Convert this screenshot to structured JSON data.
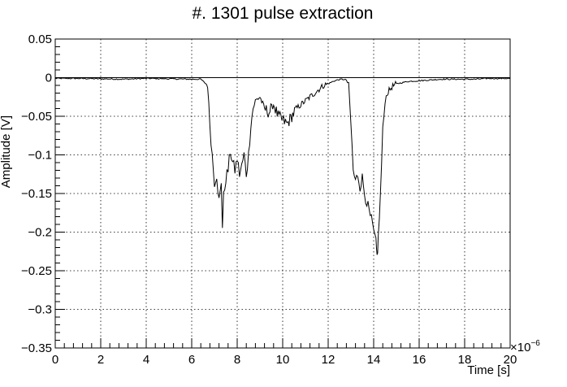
{
  "chart_data": {
    "type": "line",
    "title": "#. 1301 pulse extraction",
    "xlabel": "Time [s]",
    "ylabel": "Amplitude [V]",
    "x_exponent_label": "×10",
    "x_exponent_power": "−6",
    "xlim": [
      0,
      20
    ],
    "ylim": [
      -0.35,
      0.05
    ],
    "x_ticks": [
      0,
      2,
      4,
      6,
      8,
      10,
      12,
      14,
      16,
      18,
      20
    ],
    "x_tick_labels": [
      "0",
      "2",
      "4",
      "6",
      "8",
      "10",
      "12",
      "14",
      "16",
      "18",
      "20"
    ],
    "y_ticks": [
      0.05,
      0,
      -0.05,
      -0.1,
      -0.15,
      -0.2,
      -0.25,
      -0.3,
      -0.35
    ],
    "y_tick_labels": [
      "0.05",
      "0",
      "−0.05",
      "−0.1",
      "−0.15",
      "−0.2",
      "−0.25",
      "−0.3",
      "−0.35"
    ],
    "grid": true,
    "baseline": 0,
    "series": [
      {
        "color": "#000000",
        "x": [
          0.0,
          1.0,
          2.0,
          3.0,
          4.0,
          5.0,
          6.0,
          6.4,
          6.7,
          6.8,
          6.9,
          7.0,
          7.1,
          7.2,
          7.3,
          7.35,
          7.4,
          7.5,
          7.6,
          7.7,
          7.8,
          7.9,
          8.0,
          8.1,
          8.2,
          8.3,
          8.4,
          8.5,
          8.6,
          8.7,
          8.8,
          9.0,
          9.2,
          9.4,
          9.6,
          9.8,
          10.0,
          10.2,
          10.4,
          10.6,
          10.8,
          11.0,
          11.2,
          11.4,
          11.6,
          11.8,
          12.0,
          12.2,
          12.4,
          12.6,
          12.8,
          12.9,
          13.0,
          13.1,
          13.2,
          13.3,
          13.4,
          13.5,
          13.6,
          13.7,
          13.8,
          13.9,
          14.0,
          14.1,
          14.15,
          14.2,
          14.3,
          14.4,
          14.5,
          14.6,
          14.8,
          15.0,
          15.5,
          16.0,
          16.5,
          17.0,
          17.5,
          18.0,
          18.5,
          19.0,
          19.5,
          20.0
        ],
        "values": [
          -0.001,
          -0.001,
          -0.0015,
          -0.002,
          -0.001,
          -0.0015,
          -0.002,
          -0.002,
          -0.01,
          -0.06,
          -0.1,
          -0.135,
          -0.125,
          -0.16,
          -0.14,
          -0.19,
          -0.155,
          -0.13,
          -0.12,
          -0.095,
          -0.11,
          -0.12,
          -0.105,
          -0.125,
          -0.115,
          -0.1,
          -0.125,
          -0.1,
          -0.06,
          -0.04,
          -0.03,
          -0.025,
          -0.04,
          -0.045,
          -0.035,
          -0.05,
          -0.055,
          -0.06,
          -0.05,
          -0.04,
          -0.035,
          -0.03,
          -0.025,
          -0.02,
          -0.015,
          -0.01,
          -0.008,
          -0.005,
          -0.003,
          -0.002,
          -0.003,
          -0.01,
          -0.06,
          -0.12,
          -0.135,
          -0.125,
          -0.14,
          -0.13,
          -0.15,
          -0.16,
          -0.175,
          -0.185,
          -0.2,
          -0.215,
          -0.232,
          -0.21,
          -0.15,
          -0.07,
          -0.03,
          -0.02,
          -0.012,
          -0.008,
          -0.005,
          -0.004,
          -0.003,
          -0.002,
          -0.002,
          -0.002,
          -0.002,
          -0.001,
          -0.001,
          -0.001
        ]
      }
    ]
  }
}
